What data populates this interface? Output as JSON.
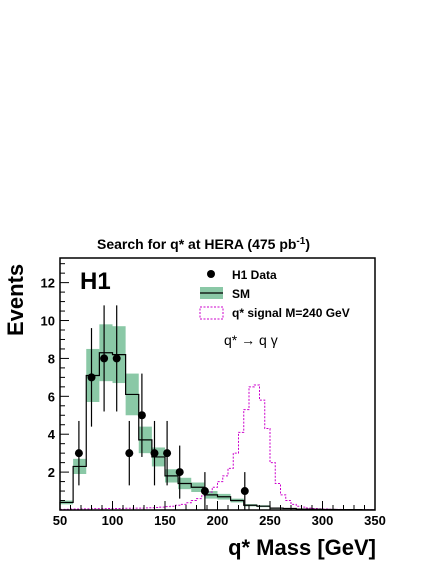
{
  "chart_data": {
    "type": "histogram",
    "title_main": "Search for q* at HERA (475 pb",
    "title_sup": "-1",
    "title_close": ")",
    "experiment_label": "H1",
    "process_label": "q* → q γ",
    "xlabel": "q* Mass [GeV]",
    "ylabel": "Events",
    "xlim": [
      50,
      350
    ],
    "ylim": [
      0,
      13.3
    ],
    "x_ticks": [
      50,
      100,
      150,
      200,
      250,
      300,
      350
    ],
    "y_ticks": [
      2,
      4,
      6,
      8,
      10,
      12
    ],
    "legend": {
      "data": "H1 Data",
      "sm": "SM",
      "signal": "q* signal M=240 GeV"
    },
    "bins": [
      50,
      62.5,
      75,
      87.5,
      100,
      112.5,
      125,
      137.5,
      150,
      162.5,
      175,
      187.5,
      200,
      212.5,
      225,
      237.5,
      250,
      262.5,
      275,
      287.5,
      300,
      312.5,
      325,
      337.5,
      350
    ],
    "sm_values": [
      0.4,
      2.3,
      7.1,
      8.3,
      8.2,
      6.1,
      3.7,
      2.8,
      1.8,
      1.4,
      1.2,
      0.8,
      0.7,
      0.5,
      0.25,
      0.2,
      0.1,
      0.08,
      0.05,
      0.04,
      0.03,
      0.02,
      0.02,
      0.01
    ],
    "sm_errors": [
      0.1,
      0.4,
      1.4,
      1.5,
      1.5,
      1.1,
      0.7,
      0.5,
      0.35,
      0.3,
      0.25,
      0.2,
      0.15,
      0.1,
      0.06,
      0.05,
      0.03,
      0.02,
      0.02,
      0.01,
      0.01,
      0.01,
      0.01,
      0.01
    ],
    "data_points": [
      {
        "x": 68,
        "y": 3,
        "err": 1.7
      },
      {
        "x": 80,
        "y": 7,
        "err": 2.6
      },
      {
        "x": 92,
        "y": 8,
        "err": 2.8
      },
      {
        "x": 104,
        "y": 8,
        "err": 2.8
      },
      {
        "x": 116,
        "y": 3,
        "err": 1.7
      },
      {
        "x": 128,
        "y": 5,
        "err": 2.2
      },
      {
        "x": 140,
        "y": 3,
        "err": 1.7
      },
      {
        "x": 152,
        "y": 3,
        "err": 1.7
      },
      {
        "x": 164,
        "y": 2,
        "err": 1.4
      },
      {
        "x": 188,
        "y": 1,
        "err": 1.0
      },
      {
        "x": 226,
        "y": 1,
        "err": 1.0
      }
    ],
    "signal_bins": [
      50,
      55,
      60,
      65,
      70,
      75,
      80,
      85,
      90,
      95,
      100,
      105,
      110,
      115,
      120,
      125,
      130,
      135,
      140,
      145,
      150,
      155,
      160,
      165,
      170,
      175,
      180,
      185,
      190,
      195,
      200,
      205,
      210,
      215,
      220,
      225,
      230,
      235,
      240,
      245,
      250,
      255,
      260,
      265,
      270,
      275,
      280,
      285,
      290,
      295,
      300,
      305,
      310,
      315,
      320,
      325,
      330,
      335,
      340,
      345,
      350
    ],
    "signal_values": [
      0.03,
      0.04,
      0.05,
      0.05,
      0.06,
      0.06,
      0.07,
      0.07,
      0.07,
      0.08,
      0.08,
      0.08,
      0.09,
      0.09,
      0.1,
      0.1,
      0.11,
      0.12,
      0.13,
      0.15,
      0.18,
      0.2,
      0.25,
      0.3,
      0.38,
      0.5,
      0.6,
      0.75,
      0.95,
      1.2,
      1.5,
      1.8,
      2.2,
      3.0,
      4.1,
      5.3,
      6.5,
      6.6,
      5.8,
      4.3,
      2.5,
      1.4,
      0.8,
      0.5,
      0.3,
      0.2,
      0.15,
      0.1,
      0.08,
      0.06,
      0.05,
      0.04,
      0.03,
      0.03,
      0.02,
      0.02,
      0.02,
      0.02,
      0.01,
      0.01
    ],
    "colors": {
      "sm_band": "#8ac8a6",
      "sm_line": "#000000",
      "signal": "#cc00cc",
      "data": "#000000"
    }
  }
}
